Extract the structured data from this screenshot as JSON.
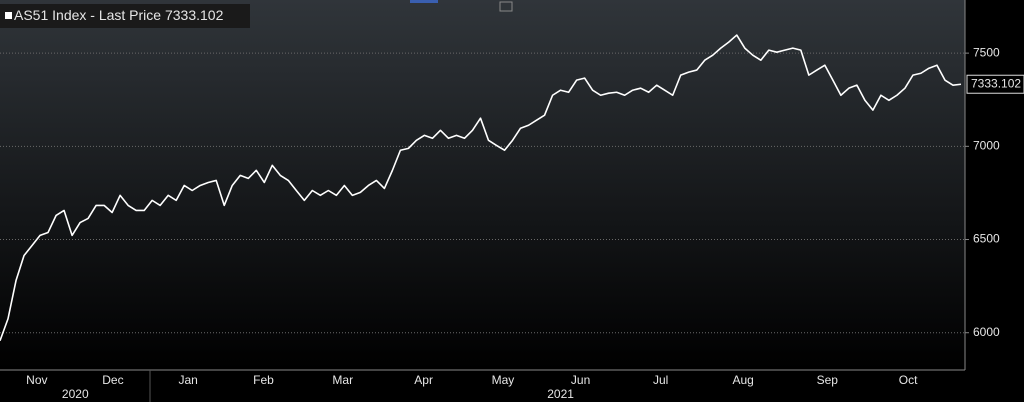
{
  "chart_data": {
    "type": "line",
    "series": [
      {
        "name": "AS51 Index - Last Price",
        "color": "#ffffff",
        "values": [
          5957,
          6075,
          6280,
          6414,
          6468,
          6522,
          6538,
          6629,
          6656,
          6522,
          6591,
          6613,
          6683,
          6683,
          6645,
          6737,
          6683,
          6656,
          6656,
          6710,
          6683,
          6737,
          6710,
          6790,
          6763,
          6790,
          6806,
          6817,
          6683,
          6790,
          6844,
          6828,
          6871,
          6806,
          6898,
          6844,
          6817,
          6763,
          6710,
          6763,
          6737,
          6763,
          6737,
          6790,
          6737,
          6753,
          6790,
          6817,
          6774,
          6871,
          6979,
          6989,
          7032,
          7059,
          7043,
          7086,
          7043,
          7059,
          7043,
          7086,
          7151,
          7032,
          7005,
          6979,
          7032,
          7097,
          7113,
          7140,
          7167,
          7274,
          7301,
          7290,
          7355,
          7366,
          7301,
          7274,
          7285,
          7290,
          7274,
          7301,
          7312,
          7290,
          7328,
          7301,
          7274,
          7382,
          7398,
          7409,
          7462,
          7489,
          7527,
          7559,
          7597,
          7527,
          7489,
          7462,
          7516,
          7505,
          7516,
          7527,
          7516,
          7382,
          7409,
          7435,
          7355,
          7274,
          7312,
          7328,
          7247,
          7194,
          7274,
          7247,
          7274,
          7312,
          7382,
          7392,
          7419,
          7435,
          7355,
          7328,
          7333.102
        ]
      }
    ],
    "xlim": [
      0,
      120.5
    ],
    "xticks": [
      {
        "value": 4.6,
        "label": "Nov"
      },
      {
        "value": 14.1,
        "label": "Dec"
      },
      {
        "value": 23.5,
        "label": "Jan"
      },
      {
        "value": 32.9,
        "label": "Feb"
      },
      {
        "value": 42.8,
        "label": "Mar"
      },
      {
        "value": 52.9,
        "label": "Apr"
      },
      {
        "value": 62.8,
        "label": "May"
      },
      {
        "value": 72.5,
        "label": "Jun"
      },
      {
        "value": 82.5,
        "label": "Jul"
      },
      {
        "value": 92.8,
        "label": "Aug"
      },
      {
        "value": 103.3,
        "label": "Sep"
      },
      {
        "value": 113.4,
        "label": "Oct"
      }
    ],
    "year_ticks": [
      {
        "value": 9.4,
        "label": "2020"
      },
      {
        "value": 70,
        "label": "2021"
      }
    ],
    "ylim": [
      5800,
      7785
    ],
    "yticks": [
      6000,
      6500,
      7000,
      7500
    ],
    "grid": true
  }
}
